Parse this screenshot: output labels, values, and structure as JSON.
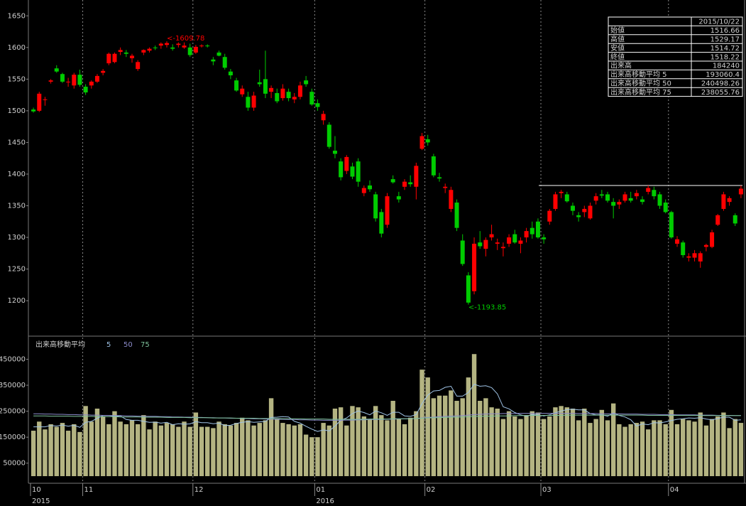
{
  "chart_data": {
    "type": "candlestick",
    "categories": [
      "10",
      null,
      null,
      null,
      null,
      null,
      null,
      null,
      null,
      "11",
      null,
      null,
      null,
      null,
      null,
      null,
      null,
      null,
      null,
      null,
      null,
      null,
      null,
      null,
      null,
      null,
      null,
      null,
      "12",
      null,
      null,
      null,
      null,
      null,
      null,
      null,
      null,
      null,
      null,
      null,
      null,
      null,
      null,
      null,
      null,
      null,
      null,
      null,
      null,
      "01",
      null,
      null,
      null,
      null,
      null,
      null,
      null,
      null,
      null,
      null,
      null,
      null,
      null,
      null,
      null,
      null,
      null,
      null,
      "02",
      null,
      null,
      null,
      null,
      null,
      null,
      null,
      null,
      null,
      null,
      null,
      null,
      null,
      null,
      null,
      null,
      null,
      null,
      null,
      "03",
      null,
      null,
      null,
      null,
      null,
      null,
      null,
      null,
      null,
      null,
      null,
      null,
      null,
      null,
      null,
      null,
      null,
      null,
      null,
      null,
      null,
      "04",
      null,
      null,
      null,
      null,
      null,
      null,
      null,
      null,
      null,
      null,
      null,
      null
    ],
    "year_labels": [
      "2015",
      null,
      null,
      null,
      null,
      null,
      null,
      null,
      null,
      null,
      null,
      null,
      null,
      null,
      null,
      null,
      null,
      null,
      null,
      null,
      null,
      null,
      null,
      null,
      null,
      null,
      null,
      null,
      null,
      null,
      null,
      null,
      null,
      null,
      null,
      null,
      null,
      null,
      null,
      null,
      null,
      null,
      null,
      null,
      null,
      null,
      null,
      null,
      null,
      "2016",
      null,
      null,
      null,
      null,
      null,
      null,
      null,
      null,
      null,
      null,
      null,
      null,
      null,
      null,
      null,
      null,
      null,
      null,
      null,
      null,
      null,
      null,
      null,
      null,
      null,
      null,
      null,
      null,
      null,
      null,
      null,
      null,
      null,
      null,
      null,
      null,
      null,
      null,
      null,
      null,
      null,
      null,
      null,
      null,
      null,
      null,
      null,
      null,
      null,
      null,
      null,
      null,
      null,
      null,
      null,
      null,
      null,
      null,
      null,
      null,
      null,
      null,
      null,
      null,
      null,
      null,
      null,
      null,
      null,
      null,
      null,
      null,
      null
    ],
    "open": [
      1502,
      1500,
      1517,
      1546,
      1567,
      1558,
      1545,
      1540,
      1557,
      1538,
      1540,
      1546,
      1560,
      1575,
      1577,
      1593,
      1592,
      1583,
      1566,
      1592,
      1595,
      1600,
      1603,
      1604,
      1600,
      1604,
      1600,
      1600,
      1592,
      1603,
      1603,
      1581,
      1592,
      1585,
      1562,
      1548,
      1526,
      1522,
      1505,
      1545,
      1550,
      1530,
      1528,
      1520,
      1530,
      1518,
      1522,
      1548,
      1530,
      1512,
      1485,
      1478,
      1437,
      1420,
      1405,
      1412,
      1420,
      1370,
      1382,
      1368,
      1340,
      1320,
      1392,
      1365,
      1380,
      1387,
      1380,
      1440,
      1455,
      1428,
      1395,
      1378,
      1345,
      1355,
      1295,
      1240,
      1215,
      1292,
      1282,
      1300,
      1290,
      1283,
      1290,
      1305,
      1290,
      1300,
      1315,
      1325,
      1300,
      1325,
      1345,
      1370,
      1368,
      1350,
      1335,
      1340,
      1330,
      1358,
      1368,
      1368,
      1356,
      1352,
      1358,
      1362,
      1365,
      1360,
      1372,
      1375,
      1368,
      1355,
      1340,
      1290,
      1292,
      1268,
      1268,
      1262,
      1285,
      1285,
      1320,
      1345,
      1356,
      1335,
      1368
    ],
    "high": [
      1505,
      1530,
      1522,
      1550,
      1572,
      1560,
      1552,
      1560,
      1565,
      1542,
      1548,
      1558,
      1566,
      1592,
      1592,
      1600,
      1596,
      1590,
      1580,
      1597,
      1600,
      1603,
      1608,
      1609.78,
      1605,
      1608,
      1608,
      1606,
      1604,
      1605,
      1605,
      1585,
      1595,
      1590,
      1566,
      1552,
      1540,
      1530,
      1530,
      1565,
      1595,
      1540,
      1535,
      1542,
      1535,
      1528,
      1546,
      1555,
      1535,
      1518,
      1500,
      1482,
      1460,
      1425,
      1430,
      1418,
      1425,
      1382,
      1390,
      1372,
      1345,
      1370,
      1398,
      1372,
      1392,
      1398,
      1418,
      1465,
      1462,
      1432,
      1402,
      1385,
      1380,
      1360,
      1305,
      1245,
      1300,
      1310,
      1300,
      1320,
      1298,
      1292,
      1305,
      1312,
      1300,
      1315,
      1325,
      1330,
      1305,
      1345,
      1372,
      1375,
      1372,
      1355,
      1340,
      1350,
      1355,
      1370,
      1375,
      1372,
      1362,
      1360,
      1372,
      1372,
      1375,
      1365,
      1382,
      1380,
      1372,
      1360,
      1342,
      1302,
      1295,
      1275,
      1280,
      1278,
      1290,
      1312,
      1337,
      1372,
      1365,
      1338,
      1382
    ],
    "low": [
      1497,
      1498,
      1508,
      1543,
      1560,
      1544,
      1538,
      1535,
      1538,
      1525,
      1535,
      1544,
      1556,
      1572,
      1575,
      1588,
      1585,
      1576,
      1563,
      1588,
      1592,
      1596,
      1598,
      1600,
      1595,
      1600,
      1598,
      1585,
      1590,
      1600,
      1600,
      1572,
      1586,
      1565,
      1550,
      1530,
      1522,
      1500,
      1500,
      1538,
      1520,
      1520,
      1512,
      1516,
      1515,
      1512,
      1518,
      1538,
      1508,
      1500,
      1478,
      1440,
      1425,
      1390,
      1400,
      1392,
      1380,
      1365,
      1372,
      1325,
      1300,
      1315,
      1385,
      1355,
      1375,
      1380,
      1360,
      1438,
      1445,
      1395,
      1388,
      1370,
      1340,
      1310,
      1255,
      1193.85,
      1210,
      1282,
      1270,
      1295,
      1280,
      1270,
      1285,
      1290,
      1275,
      1292,
      1298,
      1298,
      1290,
      1320,
      1342,
      1362,
      1355,
      1335,
      1325,
      1332,
      1328,
      1352,
      1362,
      1355,
      1330,
      1345,
      1355,
      1355,
      1360,
      1352,
      1368,
      1360,
      1345,
      1338,
      1298,
      1285,
      1268,
      1262,
      1262,
      1252,
      1278,
      1283,
      1318,
      1342,
      1350,
      1318,
      1362
    ],
    "close": [
      1499,
      1527,
      1518,
      1548,
      1562,
      1546,
      1546,
      1557,
      1541,
      1529,
      1546,
      1555,
      1563,
      1590,
      1590,
      1596,
      1590,
      1587,
      1577,
      1596,
      1598,
      1599,
      1606,
      1607,
      1598,
      1606,
      1603,
      1588,
      1601,
      1603,
      1602,
      1578,
      1587,
      1568,
      1556,
      1532,
      1535,
      1505,
      1524,
      1542,
      1527,
      1536,
      1515,
      1535,
      1520,
      1522,
      1540,
      1542,
      1510,
      1506,
      1495,
      1443,
      1432,
      1395,
      1427,
      1396,
      1388,
      1378,
      1376,
      1330,
      1306,
      1365,
      1387,
      1360,
      1388,
      1384,
      1413,
      1460,
      1450,
      1398,
      1393,
      1380,
      1375,
      1315,
      1258,
      1197,
      1290,
      1286,
      1296,
      1305,
      1292,
      1285,
      1300,
      1292,
      1295,
      1310,
      1305,
      1300,
      1297,
      1342,
      1368,
      1372,
      1357,
      1342,
      1332,
      1345,
      1350,
      1365,
      1366,
      1358,
      1350,
      1356,
      1368,
      1358,
      1370,
      1356,
      1378,
      1365,
      1350,
      1340,
      1300,
      1297,
      1272,
      1270,
      1275,
      1275,
      1288,
      1308,
      1335,
      1368,
      1362,
      1322,
      1377
    ],
    "volume": [
      175000,
      210000,
      180000,
      200000,
      190000,
      205000,
      175000,
      200000,
      170000,
      270000,
      210000,
      260000,
      230000,
      200000,
      250000,
      210000,
      200000,
      215000,
      200000,
      235000,
      180000,
      210000,
      195000,
      205000,
      200000,
      190000,
      210000,
      190000,
      245000,
      190000,
      190000,
      185000,
      210000,
      200000,
      195000,
      205000,
      225000,
      215000,
      195000,
      205000,
      215000,
      300000,
      220000,
      205000,
      200000,
      195000,
      200000,
      160000,
      150000,
      150000,
      205000,
      195000,
      260000,
      265000,
      195000,
      270000,
      265000,
      230000,
      220000,
      270000,
      235000,
      215000,
      290000,
      220000,
      200000,
      225000,
      250000,
      410000,
      380000,
      300000,
      310000,
      310000,
      330000,
      290000,
      300000,
      380000,
      470000,
      290000,
      300000,
      265000,
      260000,
      220000,
      250000,
      230000,
      220000,
      235000,
      250000,
      245000,
      220000,
      230000,
      265000,
      270000,
      265000,
      260000,
      215000,
      260000,
      205000,
      220000,
      255000,
      215000,
      280000,
      200000,
      190000,
      200000,
      205000,
      210000,
      180000,
      215000,
      215000,
      200000,
      255000,
      200000,
      220000,
      215000,
      210000,
      245000,
      195000,
      220000,
      230000,
      245000,
      185000,
      220000,
      205000
    ],
    "ma_legend_title": "出来高移動平均",
    "ma_series": [
      {
        "name": "5",
        "color": "#9fc3e6",
        "values": [
          190000,
          190000,
          190000,
          195000,
          193000,
          197000,
          192000,
          196000,
          188000,
          207000,
          211000,
          223000,
          233000,
          234000,
          230000,
          232000,
          218000,
          215000,
          215000,
          211000,
          207000,
          208000,
          204000,
          207000,
          198000,
          202000,
          200000,
          201000,
          210000,
          206000,
          206000,
          202000,
          204000,
          195000,
          196000,
          203000,
          207000,
          210000,
          207000,
          209000,
          211000,
          226000,
          227000,
          229000,
          228000,
          211000,
          204000,
          192000,
          181000,
          172000,
          178000,
          174000,
          193000,
          215000,
          224000,
          241000,
          251000,
          245000,
          236000,
          251000,
          244000,
          234000,
          246000,
          246000,
          232000,
          230000,
          237000,
          279000,
          312000,
          328000,
          330000,
          342000,
          346000,
          308000,
          308000,
          322000,
          354000,
          346000,
          348000,
          341000,
          317000,
          267000,
          259000,
          245000,
          236000,
          231000,
          237000,
          236000,
          232000,
          236000,
          244000,
          251000,
          256000,
          258000,
          255000,
          255000,
          241000,
          236000,
          236000,
          231000,
          243000,
          234000,
          228000,
          217000,
          193000,
          201000,
          198000,
          206000,
          205000,
          209000,
          214000,
          219000,
          221000,
          224000,
          223000,
          225000,
          220000,
          217000,
          222000,
          227000,
          227000,
          215000,
          217000
        ]
      },
      {
        "name": "50",
        "color": "#8c8ccc",
        "values": [
          240000,
          240000,
          239000,
          239000,
          238000,
          238000,
          237000,
          237000,
          236000,
          236000,
          235000,
          235000,
          234000,
          234000,
          233000,
          233000,
          232000,
          232000,
          231000,
          231000,
          230000,
          230000,
          229000,
          229000,
          228000,
          228000,
          227000,
          227000,
          226000,
          226000,
          225000,
          225000,
          224000,
          224000,
          223000,
          223000,
          222000,
          222000,
          221000,
          221000,
          220000,
          220000,
          219000,
          219000,
          218000,
          218000,
          217000,
          217000,
          216000,
          216000,
          215000,
          215000,
          215000,
          215000,
          216000,
          216000,
          217000,
          217000,
          218000,
          218000,
          219000,
          219000,
          220000,
          220000,
          221000,
          221000,
          222000,
          224000,
          226000,
          227000,
          229000,
          230000,
          231000,
          232000,
          233000,
          235000,
          237000,
          238000,
          239000,
          240000,
          240000,
          241000,
          241000,
          241000,
          242000,
          242000,
          242000,
          242000,
          242000,
          242000,
          242000,
          242000,
          242000,
          242000,
          241000,
          241000,
          241000,
          241000,
          240000,
          240000,
          240000,
          240000,
          239000,
          239000,
          239000,
          238000,
          238000,
          238000,
          237000,
          237000,
          237000,
          236000,
          236000,
          236000,
          236000,
          235000,
          235000,
          235000,
          234000,
          234000,
          234000,
          233000,
          233000
        ]
      },
      {
        "name": "75",
        "color": "#7fc49c",
        "values": [
          232000,
          232000,
          232000,
          231000,
          231000,
          231000,
          231000,
          230000,
          230000,
          230000,
          230000,
          229000,
          229000,
          229000,
          229000,
          228000,
          228000,
          228000,
          228000,
          227000,
          227000,
          227000,
          227000,
          226000,
          226000,
          226000,
          226000,
          225000,
          225000,
          225000,
          225000,
          224000,
          224000,
          224000,
          224000,
          223000,
          223000,
          223000,
          223000,
          222000,
          222000,
          222000,
          222000,
          221000,
          221000,
          221000,
          221000,
          220000,
          220000,
          220000,
          220000,
          219000,
          219000,
          219000,
          219000,
          219000,
          219000,
          219000,
          220000,
          220000,
          220000,
          220000,
          221000,
          221000,
          221000,
          221000,
          222000,
          223000,
          224000,
          225000,
          225000,
          226000,
          227000,
          227000,
          228000,
          229000,
          230000,
          230000,
          231000,
          231000,
          232000,
          232000,
          232000,
          233000,
          233000,
          233000,
          234000,
          234000,
          234000,
          234000,
          234000,
          234000,
          235000,
          235000,
          235000,
          235000,
          235000,
          235000,
          235000,
          235000,
          235000,
          235000,
          235000,
          235000,
          235000,
          235000,
          234000,
          234000,
          234000,
          234000,
          234000,
          234000,
          234000,
          234000,
          234000,
          233000,
          233000,
          233000,
          233000,
          233000,
          233000,
          233000,
          233000
        ]
      }
    ],
    "up_color": "#ff0000",
    "down_color": "#00cc00",
    "volume_color": "#b4b482",
    "ylim": [
      1144,
      1675
    ],
    "yticks": [
      1200,
      1250,
      1300,
      1350,
      1400,
      1450,
      1500,
      1550,
      1600,
      1650
    ],
    "vol_ylim": [
      0,
      539000
    ],
    "vol_yticks": [
      50000,
      150000,
      250000,
      350000,
      450000
    ],
    "hline": 1382,
    "annotations": [
      {
        "label": "<-1609.78",
        "value": 1609.78,
        "color": "#ff0000"
      },
      {
        "label": "<-1193.85",
        "value": 1193.85,
        "color": "#00cc00"
      }
    ],
    "info_table": {
      "date": "2015/10/22",
      "rows": [
        {
          "label": "始値",
          "value": 1516.66
        },
        {
          "label": "高値",
          "value": 1529.17
        },
        {
          "label": "安値",
          "value": 1514.72
        },
        {
          "label": "終値",
          "value": 1518.22
        },
        {
          "label": "出来高",
          "value": 184240
        },
        {
          "label": "出来高移動平均 5",
          "value": 193060.4
        },
        {
          "label": "出来高移動平均 50",
          "value": 240498.26
        },
        {
          "label": "出来高移動平均 75",
          "value": 238055.76
        }
      ]
    }
  }
}
